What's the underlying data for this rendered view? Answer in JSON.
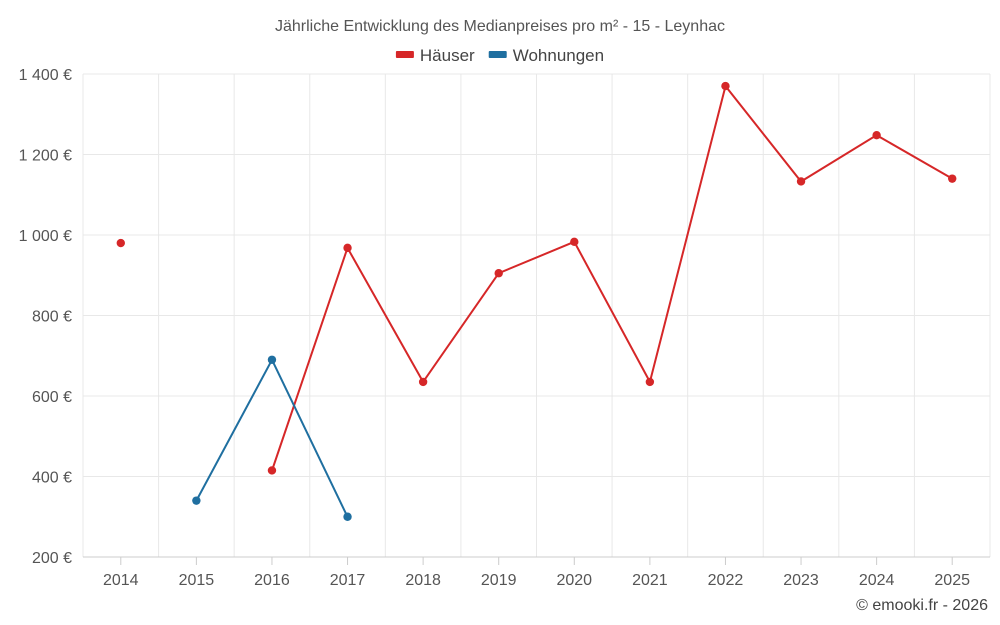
{
  "chart_data": {
    "type": "line",
    "title": "Jährliche Entwicklung des Medianpreises pro m² - 15 - Leynhac",
    "x": [
      "2014",
      "2015",
      "2016",
      "2017",
      "2018",
      "2019",
      "2020",
      "2021",
      "2022",
      "2023",
      "2024",
      "2025"
    ],
    "ylim": [
      200,
      1400
    ],
    "yticks": [
      200,
      400,
      600,
      800,
      1000,
      1200,
      1400
    ],
    "ytick_labels": [
      "200 €",
      "400 €",
      "600 €",
      "800 €",
      "1 000 €",
      "1 200 €",
      "1 400 €"
    ],
    "grid": true,
    "legend_position": "top-center",
    "series": [
      {
        "name": "Häuser",
        "color": "#d62728",
        "values": [
          980,
          null,
          415,
          968,
          635,
          905,
          983,
          635,
          1370,
          1133,
          1248,
          1140
        ]
      },
      {
        "name": "Wohnungen",
        "color": "#1f6fa0",
        "values": [
          null,
          340,
          690,
          300,
          null,
          null,
          null,
          null,
          null,
          null,
          null,
          null
        ]
      }
    ]
  },
  "credit": "© emooki.fr - 2026"
}
